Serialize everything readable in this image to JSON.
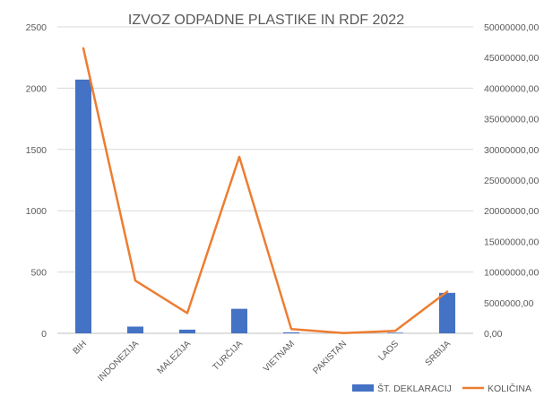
{
  "chart_data": {
    "type": "bar",
    "title": "IZVOZ ODPADNE PLASTIKE IN RDF 2022",
    "categories": [
      "BIH",
      "INDONEZIJA",
      "MALEZIJA",
      "TURČIJA",
      "VIETNAM",
      "PAKISTAN",
      "LAOS",
      "SRBIJA"
    ],
    "series": [
      {
        "name": "ŠT. DEKLARACIJ",
        "type": "bar",
        "axis": "left",
        "color": "#4472C4",
        "values": [
          2070,
          55,
          30,
          200,
          8,
          2,
          5,
          330
        ]
      },
      {
        "name": "KOLIČINA",
        "type": "line",
        "axis": "right",
        "color": "#ED7D31",
        "values": [
          46500000,
          8600000,
          3300000,
          28800000,
          700000,
          50000,
          400000,
          6800000
        ]
      }
    ],
    "left_axis": {
      "ylim": [
        0,
        2500
      ],
      "ticks": [
        0,
        500,
        1000,
        1500,
        2000,
        2500
      ],
      "tick_labels": [
        "0",
        "500",
        "1000",
        "1500",
        "2000",
        "2500"
      ]
    },
    "right_axis": {
      "ylim": [
        0,
        50000000
      ],
      "ticks": [
        0,
        5000000,
        10000000,
        15000000,
        20000000,
        25000000,
        30000000,
        35000000,
        40000000,
        45000000,
        50000000
      ],
      "tick_labels": [
        "0,00",
        "5000000,00",
        "10000000,00",
        "15000000,00",
        "20000000,00",
        "25000000,00",
        "30000000,00",
        "35000000,00",
        "40000000,00",
        "45000000,00",
        "50000000,00"
      ]
    },
    "grid": true,
    "legend": "bottom-right"
  }
}
